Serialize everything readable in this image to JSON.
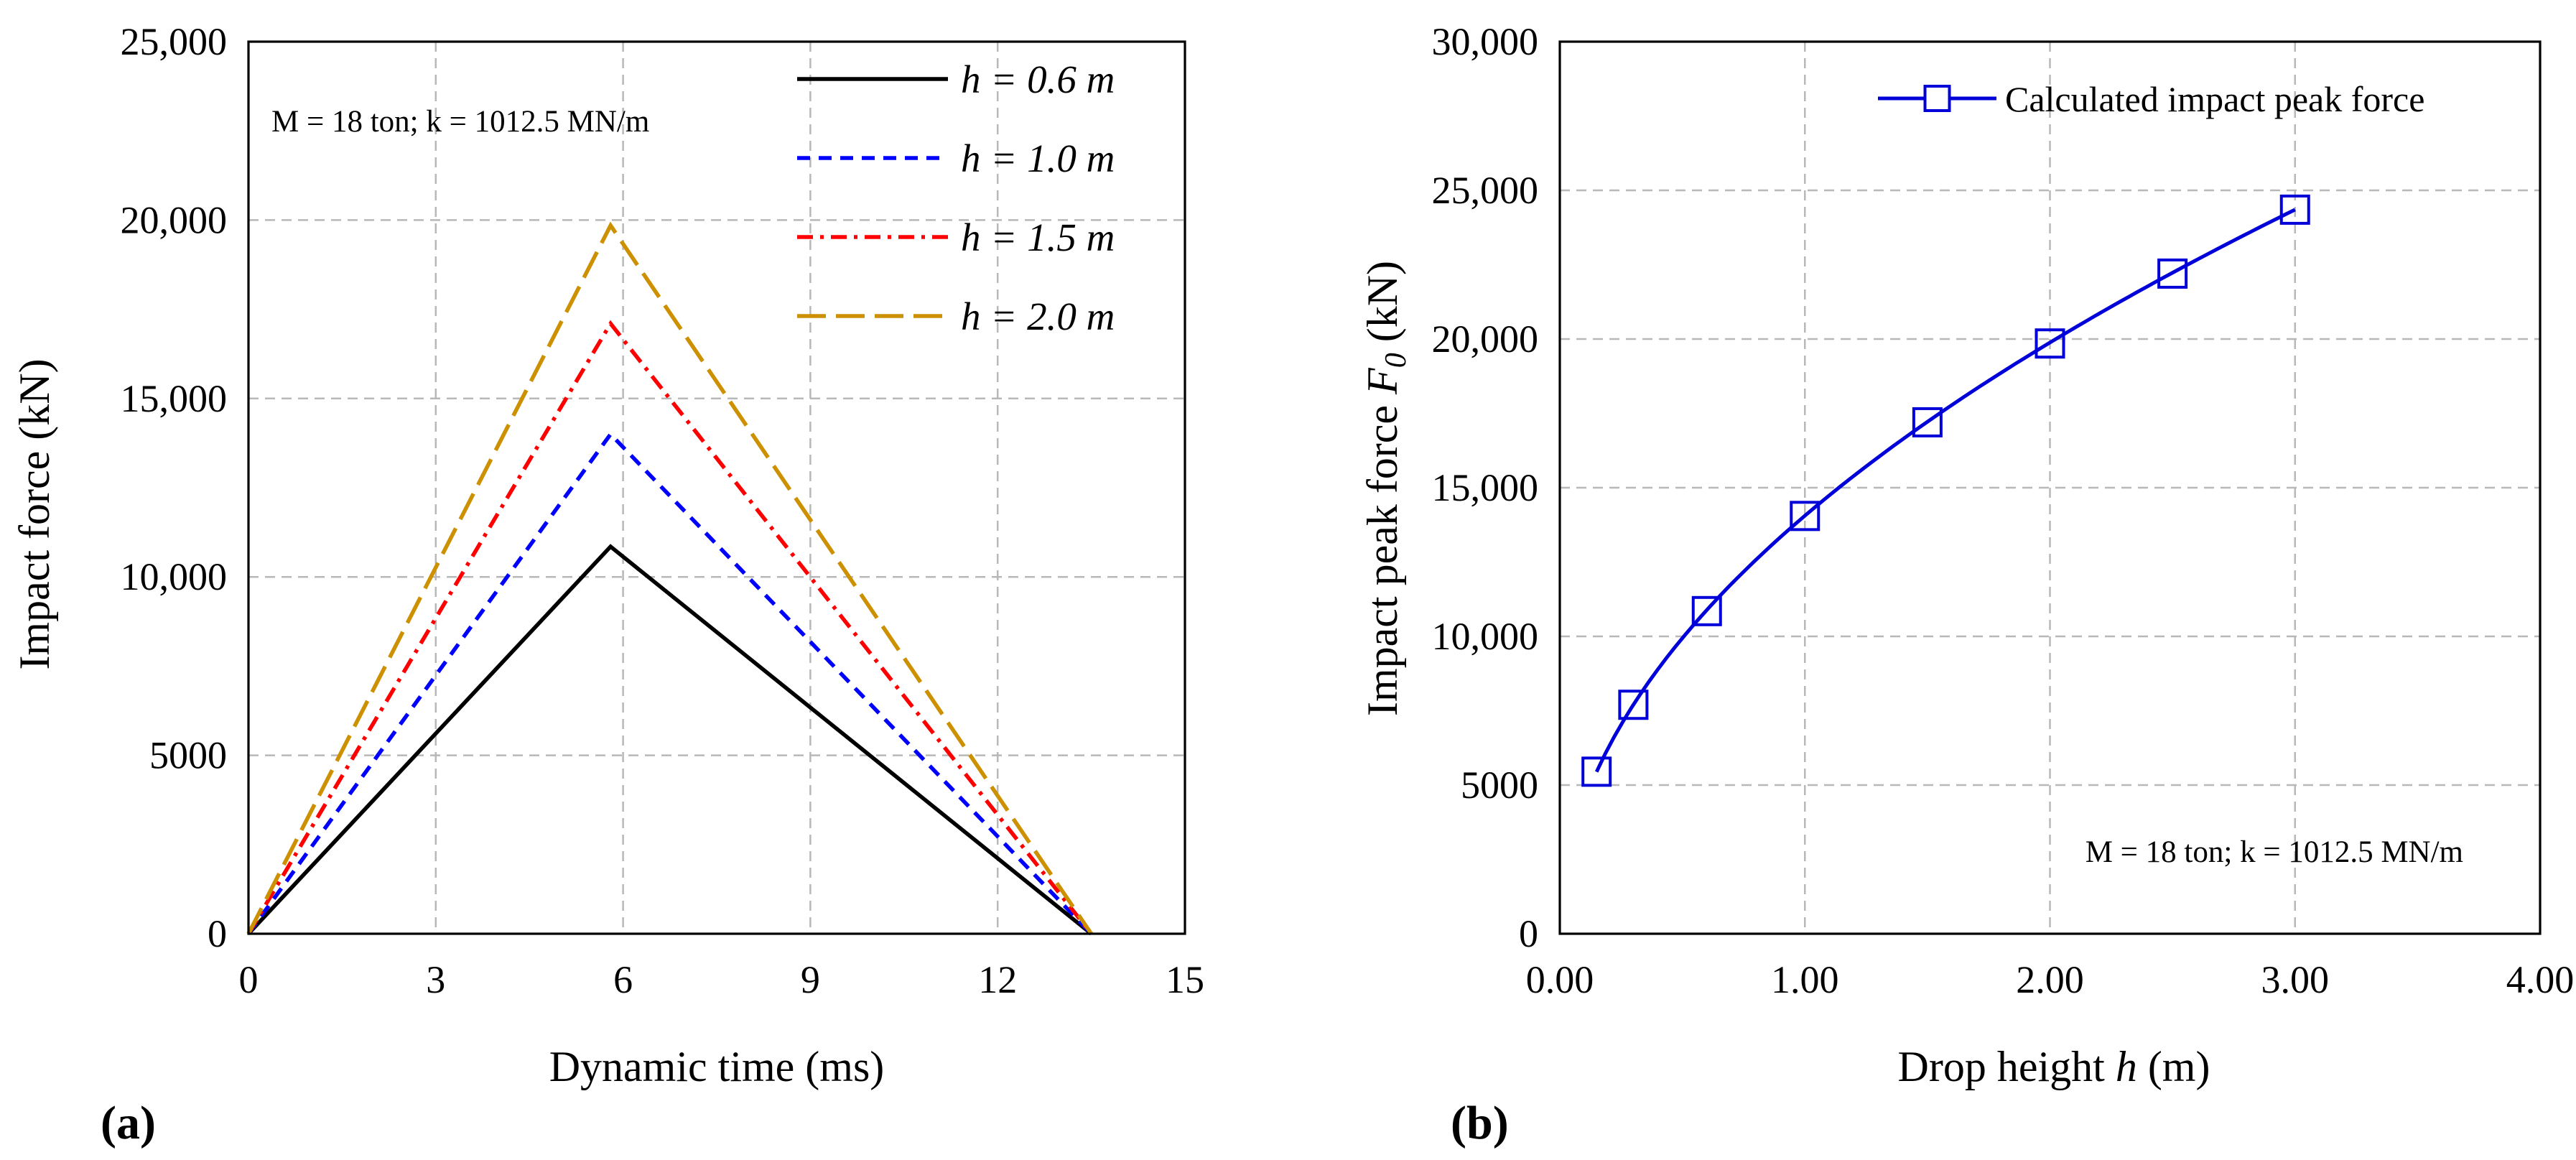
{
  "chart_data": [
    {
      "id": "a",
      "type": "line",
      "panel_label": "a",
      "xlabel": "Dynamic time (ms)",
      "ylabel": "Impact force (kN)",
      "xlim": [
        0,
        15
      ],
      "ylim": [
        0,
        25000
      ],
      "xticks": [
        0,
        3,
        6,
        9,
        12,
        15
      ],
      "yticks": [
        0,
        5000,
        10000,
        15000,
        20000,
        25000
      ],
      "xtick_labels": [
        "0",
        "3",
        "6",
        "9",
        "12",
        "15"
      ],
      "ytick_labels": [
        "0",
        "5000",
        "10,000",
        "15,000",
        "20,000",
        "25,000"
      ],
      "grid": true,
      "annotation": "M = 18 ton; k = 1012.5 MN/m",
      "legend_position": "top-right",
      "series": [
        {
          "name": "h = 0.6 m",
          "color": "#000000",
          "dash": "solid",
          "x": [
            0,
            5.8,
            13.5
          ],
          "y": [
            0,
            10850,
            0
          ]
        },
        {
          "name": "h = 1.0 m",
          "color": "#0000ff",
          "dash": "dashed",
          "x": [
            0,
            5.8,
            13.5
          ],
          "y": [
            0,
            14000,
            0
          ]
        },
        {
          "name": "h = 1.5 m",
          "color": "#ff0000",
          "dash": "dashdot",
          "x": [
            0,
            5.8,
            13.5
          ],
          "y": [
            0,
            17100,
            0
          ]
        },
        {
          "name": "h = 2.0 m",
          "color": "#cc9000",
          "dash": "longdash",
          "x": [
            0,
            5.8,
            13.5
          ],
          "y": [
            0,
            19850,
            0
          ]
        }
      ]
    },
    {
      "id": "b",
      "type": "line",
      "panel_label": "b",
      "xlabel_text": "Drop height ",
      "xlabel_var": "h",
      "xlabel_unit": " (m)",
      "ylabel_text": "Impact peak force  ",
      "ylabel_var": "F",
      "ylabel_sub": "0",
      "ylabel_unit": " (kN)",
      "xlim": [
        0,
        4
      ],
      "ylim": [
        0,
        30000
      ],
      "xticks": [
        0,
        1,
        2,
        3,
        4
      ],
      "yticks": [
        0,
        5000,
        10000,
        15000,
        20000,
        25000,
        30000
      ],
      "xtick_labels": [
        "0.00",
        "1.00",
        "2.00",
        "3.00",
        "4.00"
      ],
      "ytick_labels": [
        "0",
        "5000",
        "10,000",
        "15,000",
        "20,000",
        "25,000",
        "30,000"
      ],
      "grid": true,
      "annotation": "M = 18 ton; k = 1012.5 MN/m",
      "legend_position": "top-right",
      "series": [
        {
          "name": "Calculated impact peak force",
          "color": "#0000d8",
          "marker": "square",
          "x": [
            0.15,
            0.3,
            0.6,
            1.0,
            1.5,
            2.0,
            2.5,
            3.0
          ],
          "y": [
            5450,
            7700,
            10850,
            14050,
            17200,
            19850,
            22200,
            24350
          ]
        }
      ]
    }
  ]
}
